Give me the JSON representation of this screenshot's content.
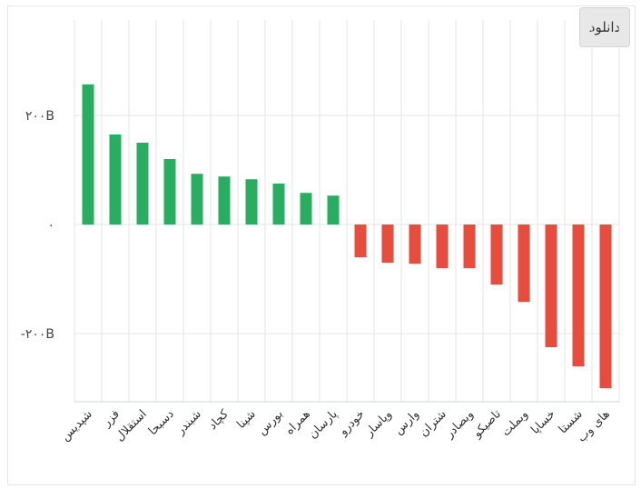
{
  "toolbar": {
    "download_label": "دانلود"
  },
  "colors": {
    "positive": "#27ae60",
    "negative": "#e74c3c",
    "grid": "#e6e6e6",
    "axis": "#ccd6eb"
  },
  "chart_data": {
    "type": "bar",
    "title": "",
    "xlabel": "",
    "ylabel": "",
    "ylim": [
      -300,
      350
    ],
    "yticks": [
      {
        "value": 200,
        "label": "۲۰۰B"
      },
      {
        "value": 0,
        "label": "۰"
      },
      {
        "value": -200,
        "label": "-۲۰۰B"
      }
    ],
    "grid": true,
    "categories": [
      "شپدیس",
      "فزر",
      "استقلال",
      "دسبحا",
      "شبندر",
      "کچاد",
      "شپنا",
      "بورس",
      "همراه",
      "پارسان",
      "خودرو",
      "وپاسار",
      "وارس",
      "شتران",
      "وبصادر",
      "تاصیکو",
      "وبملت",
      "خساپا",
      "شستا",
      "های وب"
    ],
    "values": [
      257,
      165,
      150,
      120,
      93,
      88,
      83,
      75,
      58,
      53,
      -60,
      -70,
      -72,
      -80,
      -80,
      -110,
      -142,
      -225,
      -260,
      -300
    ]
  }
}
